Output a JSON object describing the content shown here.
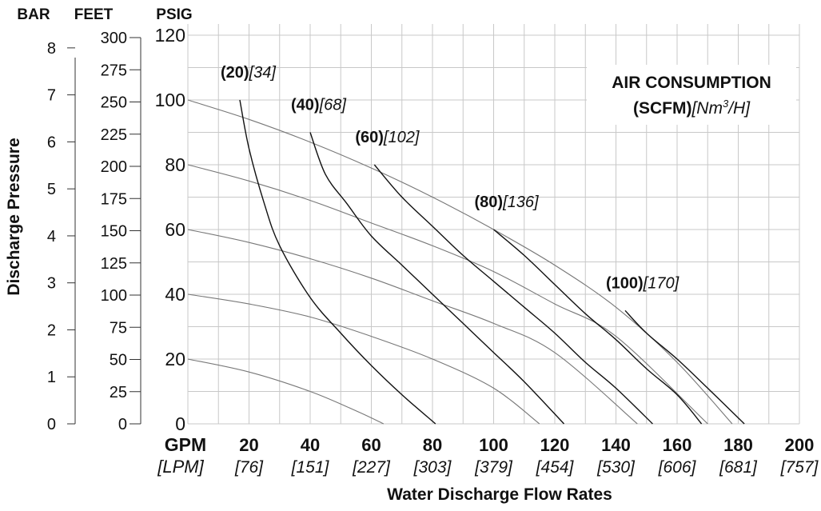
{
  "chart_data": {
    "type": "line",
    "xlabel": "Water Discharge Flow Rates",
    "ylabel": "Discharge Pressure",
    "x_unit_primary": "GPM",
    "x_unit_secondary": "[LPM]",
    "xlim": [
      0,
      200
    ],
    "x_ticks": [
      20,
      40,
      60,
      80,
      100,
      120,
      140,
      160,
      180,
      200
    ],
    "x_ticks_secondary": [
      "[76]",
      "[151]",
      "[227]",
      "[303]",
      "[379]",
      "[454]",
      "[530]",
      "[606]",
      "[681]",
      "[757]"
    ],
    "grid": true,
    "axes": [
      {
        "label": "BAR",
        "ylim": [
          0,
          8.27
        ],
        "ticks": [
          0,
          1,
          2,
          3,
          4,
          5,
          6,
          7,
          8
        ]
      },
      {
        "label": "FEET",
        "ylim": [
          0,
          300
        ],
        "ticks": [
          0,
          25,
          50,
          75,
          100,
          125,
          150,
          175,
          200,
          225,
          250,
          275,
          300
        ]
      },
      {
        "label": "PSIG",
        "ylim": [
          0,
          120
        ],
        "ticks": [
          0,
          20,
          40,
          60,
          80,
          100,
          120
        ]
      }
    ],
    "legend": {
      "title_line1": "AIR CONSUMPTION",
      "title_line2_bold": "(SCFM)",
      "title_line2_italic": "[Nm",
      "title_line2_sup": "3",
      "title_line2_end": "/H]",
      "placement": "top-right"
    },
    "performance_curves": [
      {
        "x": [
          0,
          20,
          40,
          55,
          64
        ],
        "y": [
          20,
          16,
          10,
          4,
          0
        ]
      },
      {
        "x": [
          0,
          20,
          40,
          60,
          80,
          100,
          115
        ],
        "y": [
          40,
          37,
          33,
          27,
          20,
          11,
          0
        ]
      },
      {
        "x": [
          0,
          20,
          40,
          60,
          80,
          100,
          120,
          147
        ],
        "y": [
          60,
          56,
          51,
          45,
          38,
          31,
          22,
          0
        ]
      },
      {
        "x": [
          0,
          20,
          40,
          60,
          80,
          100,
          120,
          140,
          170
        ],
        "y": [
          80,
          75,
          69,
          62,
          55,
          47,
          37,
          27,
          0
        ]
      },
      {
        "x": [
          0,
          20,
          40,
          60,
          80,
          100,
          120,
          140,
          160,
          178
        ],
        "y": [
          100,
          94,
          87,
          79,
          70,
          60,
          49,
          36,
          19,
          0
        ]
      }
    ],
    "air_consumption_curves": [
      {
        "scfm": "(20)",
        "nm3h": "[34]",
        "x": [
          17,
          20,
          25,
          30,
          40,
          50,
          60,
          70,
          81
        ],
        "y": [
          100,
          85,
          68,
          55,
          39,
          28,
          18,
          9,
          0
        ]
      },
      {
        "scfm": "(40)",
        "nm3h": "[68]",
        "x": [
          40,
          45,
          52,
          60,
          70,
          80,
          90,
          100,
          110,
          123
        ],
        "y": [
          90,
          77,
          68,
          58,
          49,
          40,
          31,
          22,
          13,
          0
        ]
      },
      {
        "scfm": "(60)",
        "nm3h": "[102]",
        "x": [
          61,
          70,
          80,
          90,
          100,
          110,
          120,
          130,
          140,
          152
        ],
        "y": [
          80,
          70,
          61,
          52,
          44,
          36,
          28,
          19,
          11,
          0
        ]
      },
      {
        "scfm": "(80)",
        "nm3h": "[136]",
        "x": [
          100,
          110,
          120,
          130,
          140,
          150,
          160,
          168
        ],
        "y": [
          60,
          52,
          43,
          34,
          26,
          17,
          9,
          0
        ]
      },
      {
        "scfm": "(100)",
        "nm3h": "[170]",
        "x": [
          143,
          150,
          160,
          170,
          182
        ],
        "y": [
          35,
          28,
          20,
          11,
          0
        ]
      }
    ]
  }
}
